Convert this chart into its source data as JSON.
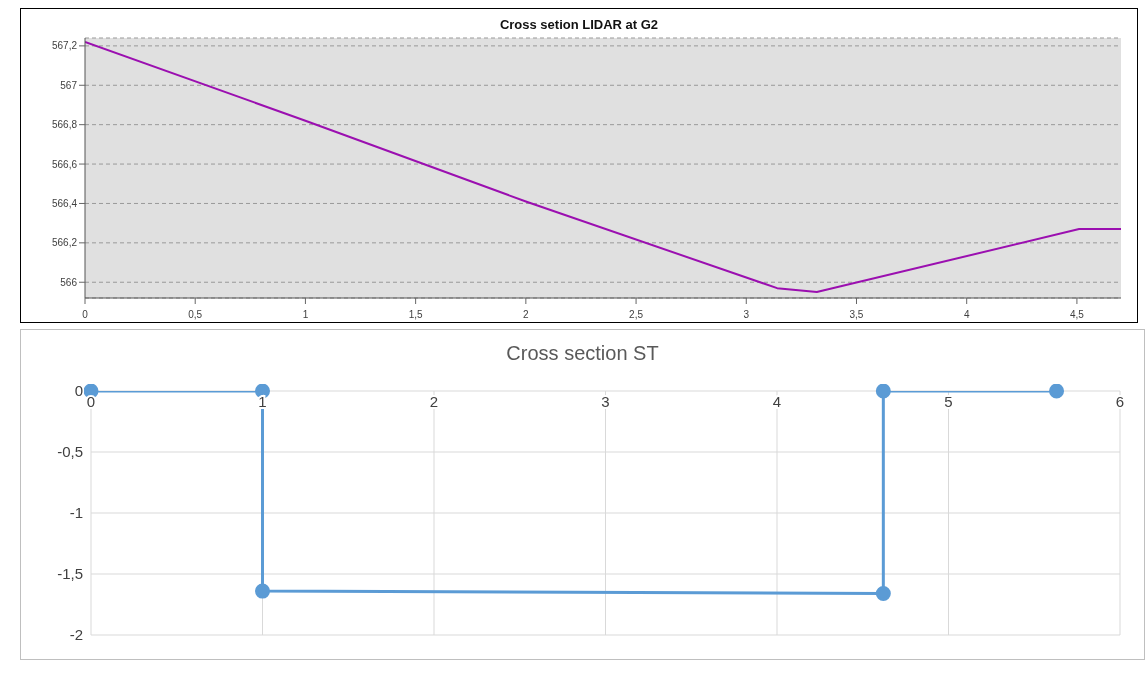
{
  "chart_data": [
    {
      "type": "line",
      "title": "Cross setion LIDAR at G2",
      "x": [
        0,
        1,
        2,
        3.14,
        3.32,
        4.51,
        4.7
      ],
      "series": [
        {
          "color": "#9b0fb0",
          "values": [
            567.22,
            566.82,
            566.41,
            565.97,
            565.95,
            566.27,
            566.27
          ]
        }
      ],
      "xlim": [
        0,
        4.7
      ],
      "ylim": [
        565.92,
        567.24
      ],
      "xticks": [
        0,
        {
          "value": 0.5,
          "label": "0,5"
        },
        1,
        {
          "value": 1.5,
          "label": "1,5"
        },
        2,
        {
          "value": 2.5,
          "label": "2,5"
        },
        3,
        {
          "value": 3.5,
          "label": "3,5"
        },
        4,
        {
          "value": 4.5,
          "label": "4,5"
        }
      ],
      "yticks": [
        566,
        {
          "value": 566.2,
          "label": "566,2"
        },
        {
          "value": 566.4,
          "label": "566,4"
        },
        {
          "value": 566.6,
          "label": "566,6"
        },
        {
          "value": 566.8,
          "label": "566,8"
        },
        567,
        {
          "value": 567.2,
          "label": "567,2"
        }
      ],
      "grid": "y",
      "marker": "none"
    },
    {
      "type": "line",
      "title": "Cross section ST",
      "x": [
        0,
        1,
        1,
        4.62,
        4.62,
        5.63
      ],
      "series": [
        {
          "color": "#5b9bd5",
          "values": [
            0,
            0,
            -1.64,
            -1.66,
            0,
            0
          ]
        }
      ],
      "xlim": [
        0,
        6
      ],
      "ylim": [
        -2,
        0
      ],
      "xticks": [
        0,
        1,
        2,
        3,
        4,
        5,
        6
      ],
      "yticks": [
        -2,
        {
          "value": -1.5,
          "label": "-1,5"
        },
        -1,
        {
          "value": -0.5,
          "label": "-0,5"
        },
        0
      ],
      "grid": true,
      "marker": "circle"
    }
  ]
}
